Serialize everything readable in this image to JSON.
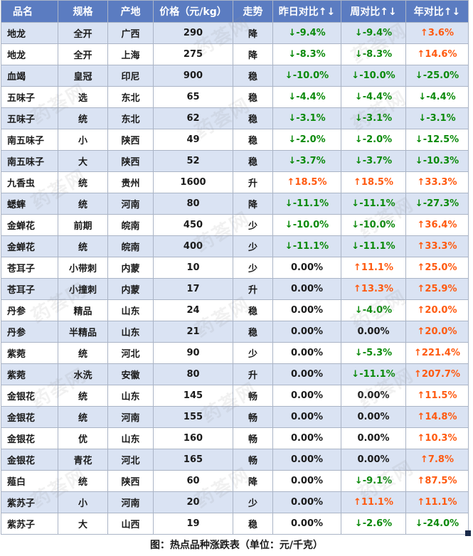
{
  "table": {
    "headers": [
      "品名",
      "规格",
      "产地",
      "价格（元/kg）",
      "走势",
      "昨日对比↑↓",
      "周对比↑↓",
      "年对比↑↓"
    ],
    "rows": [
      {
        "name": "地龙",
        "spec": "全开",
        "origin": "广西",
        "price": "290",
        "trend": "降",
        "day": "↓-9.4%",
        "week": "↓-9.4%",
        "year": "↑3.6%"
      },
      {
        "name": "地龙",
        "spec": "全开",
        "origin": "上海",
        "price": "275",
        "trend": "降",
        "day": "↓-8.3%",
        "week": "↓-8.3%",
        "year": "↑14.6%"
      },
      {
        "name": "血竭",
        "spec": "皇冠",
        "origin": "印尼",
        "price": "900",
        "trend": "稳",
        "day": "↓-10.0%",
        "week": "↓-10.0%",
        "year": "↓-25.0%"
      },
      {
        "name": "五味子",
        "spec": "选",
        "origin": "东北",
        "price": "65",
        "trend": "稳",
        "day": "↓-4.4%",
        "week": "↓-4.4%",
        "year": "↓-4.4%"
      },
      {
        "name": "五味子",
        "spec": "统",
        "origin": "东北",
        "price": "62",
        "trend": "稳",
        "day": "↓-3.1%",
        "week": "↓-3.1%",
        "year": "↓-3.1%"
      },
      {
        "name": "南五味子",
        "spec": "小",
        "origin": "陕西",
        "price": "49",
        "trend": "稳",
        "day": "↓-2.0%",
        "week": "↓-2.0%",
        "year": "↓-12.5%"
      },
      {
        "name": "南五味子",
        "spec": "大",
        "origin": "陕西",
        "price": "52",
        "trend": "稳",
        "day": "↓-3.7%",
        "week": "↓-3.7%",
        "year": "↓-10.3%"
      },
      {
        "name": "九香虫",
        "spec": "统",
        "origin": "贵州",
        "price": "1600",
        "trend": "升",
        "day": "↑18.5%",
        "week": "↑18.5%",
        "year": "↑33.3%"
      },
      {
        "name": "蟋蟀",
        "spec": "统",
        "origin": "河南",
        "price": "80",
        "trend": "降",
        "day": "↓-11.1%",
        "week": "↓-11.1%",
        "year": "↓-27.3%"
      },
      {
        "name": "金蝉花",
        "spec": "前期",
        "origin": "皖南",
        "price": "450",
        "trend": "少",
        "day": "↓-10.0%",
        "week": "↓-10.0%",
        "year": "↑36.4%"
      },
      {
        "name": "金蝉花",
        "spec": "统",
        "origin": "皖南",
        "price": "400",
        "trend": "少",
        "day": "↓-11.1%",
        "week": "↓-11.1%",
        "year": "↑33.3%"
      },
      {
        "name": "苍耳子",
        "spec": "小带刺",
        "origin": "内蒙",
        "price": "10",
        "trend": "少",
        "day": "0.00%",
        "week": "↑11.1%",
        "year": "↑25.0%"
      },
      {
        "name": "苍耳子",
        "spec": "小撞刺",
        "origin": "内蒙",
        "price": "17",
        "trend": "升",
        "day": "0.00%",
        "week": "↑13.3%",
        "year": "↑25.9%"
      },
      {
        "name": "丹参",
        "spec": "精品",
        "origin": "山东",
        "price": "24",
        "trend": "稳",
        "day": "0.00%",
        "week": "↓-4.0%",
        "year": "↑20.0%"
      },
      {
        "name": "丹参",
        "spec": "半精品",
        "origin": "山东",
        "price": "21",
        "trend": "稳",
        "day": "0.00%",
        "week": "0.00%",
        "year": "↑20.0%"
      },
      {
        "name": "紫菀",
        "spec": "统",
        "origin": "河北",
        "price": "90",
        "trend": "少",
        "day": "0.00%",
        "week": "↓-5.3%",
        "year": "↑221.4%"
      },
      {
        "name": "紫菀",
        "spec": "水洗",
        "origin": "安徽",
        "price": "80",
        "trend": "升",
        "day": "0.00%",
        "week": "↓-11.1%",
        "year": "↑207.7%"
      },
      {
        "name": "金银花",
        "spec": "统",
        "origin": "山东",
        "price": "145",
        "trend": "畅",
        "day": "0.00%",
        "week": "0.00%",
        "year": "↑11.5%"
      },
      {
        "name": "金银花",
        "spec": "统",
        "origin": "河南",
        "price": "155",
        "trend": "畅",
        "day": "0.00%",
        "week": "0.00%",
        "year": "↑14.8%"
      },
      {
        "name": "金银花",
        "spec": "优",
        "origin": "山东",
        "price": "160",
        "trend": "畅",
        "day": "0.00%",
        "week": "0.00%",
        "year": "↑10.3%"
      },
      {
        "name": "金银花",
        "spec": "青花",
        "origin": "河北",
        "price": "165",
        "trend": "畅",
        "day": "0.00%",
        "week": "0.00%",
        "year": "↑7.8%"
      },
      {
        "name": "薤白",
        "spec": "统",
        "origin": "陕西",
        "price": "60",
        "trend": "降",
        "day": "0.00%",
        "week": "↓-9.1%",
        "year": "↑87.5%"
      },
      {
        "name": "紫苏子",
        "spec": "小",
        "origin": "河南",
        "price": "20",
        "trend": "少",
        "day": "0.00%",
        "week": "↑11.1%",
        "year": "↑11.1%"
      },
      {
        "name": "紫苏子",
        "spec": "大",
        "origin": "山西",
        "price": "19",
        "trend": "稳",
        "day": "0.00%",
        "week": "↓-2.6%",
        "year": "↓-24.0%"
      }
    ]
  },
  "caption": "图：热点品种涨跌表（单位：元/千克）",
  "watermark": "药荟网",
  "colors": {
    "header_bg": "#5b7cc1",
    "row_band": "#dae3f3",
    "down": "#0a8a0a",
    "up": "#ff5a10"
  }
}
